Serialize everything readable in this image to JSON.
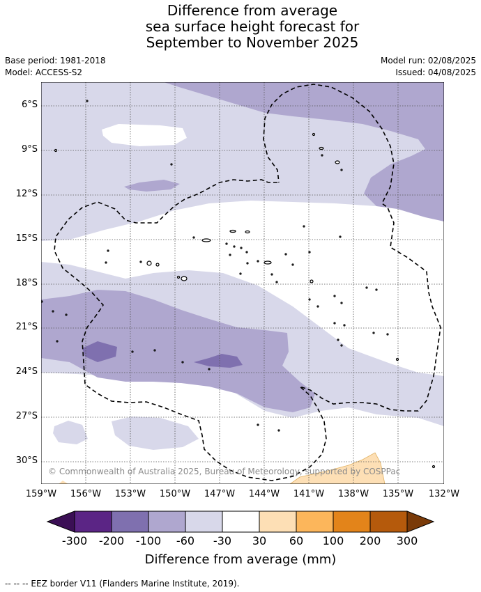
{
  "title": {
    "line1": "Difference from average",
    "line2": "sea surface height forecast for",
    "line3": "September to November 2025"
  },
  "meta": {
    "base_period": "Base period: 1981-2018",
    "model": "Model: ACCESS-S2",
    "model_run": "Model run: 02/08/2025",
    "issued": "Issued: 04/08/2025"
  },
  "latitude_labels": [
    "6°S",
    "9°S",
    "12°S",
    "15°S",
    "18°S",
    "21°S",
    "24°S",
    "27°S",
    "30°S"
  ],
  "longitude_labels": [
    "159°W",
    "156°W",
    "153°W",
    "150°W",
    "147°W",
    "144°W",
    "141°W",
    "138°W",
    "135°W",
    "132°W"
  ],
  "copyright": "© Commonwealth of Australia 2025, Bureau of Meteorology, supported by COSPPac",
  "colorbar": {
    "title": "Difference from average (mm)",
    "labels": [
      "-300",
      "-200",
      "-100",
      "-60",
      "-30",
      "30",
      "60",
      "100",
      "200",
      "300"
    ],
    "colors": {
      "under": "#3b0f55",
      "c1": "#5b2585",
      "c2": "#7f70af",
      "c3": "#afa7cf",
      "c4": "#d8d8ea",
      "c5": "#ffffff",
      "c6": "#fddfb5",
      "c7": "#fcb65b",
      "c8": "#e3841a",
      "c9": "#b55a0c",
      "over": "#7a3a08"
    }
  },
  "footnote": "-- -- -- EEZ border V11 (Flanders Marine Institute, 2019)."
}
